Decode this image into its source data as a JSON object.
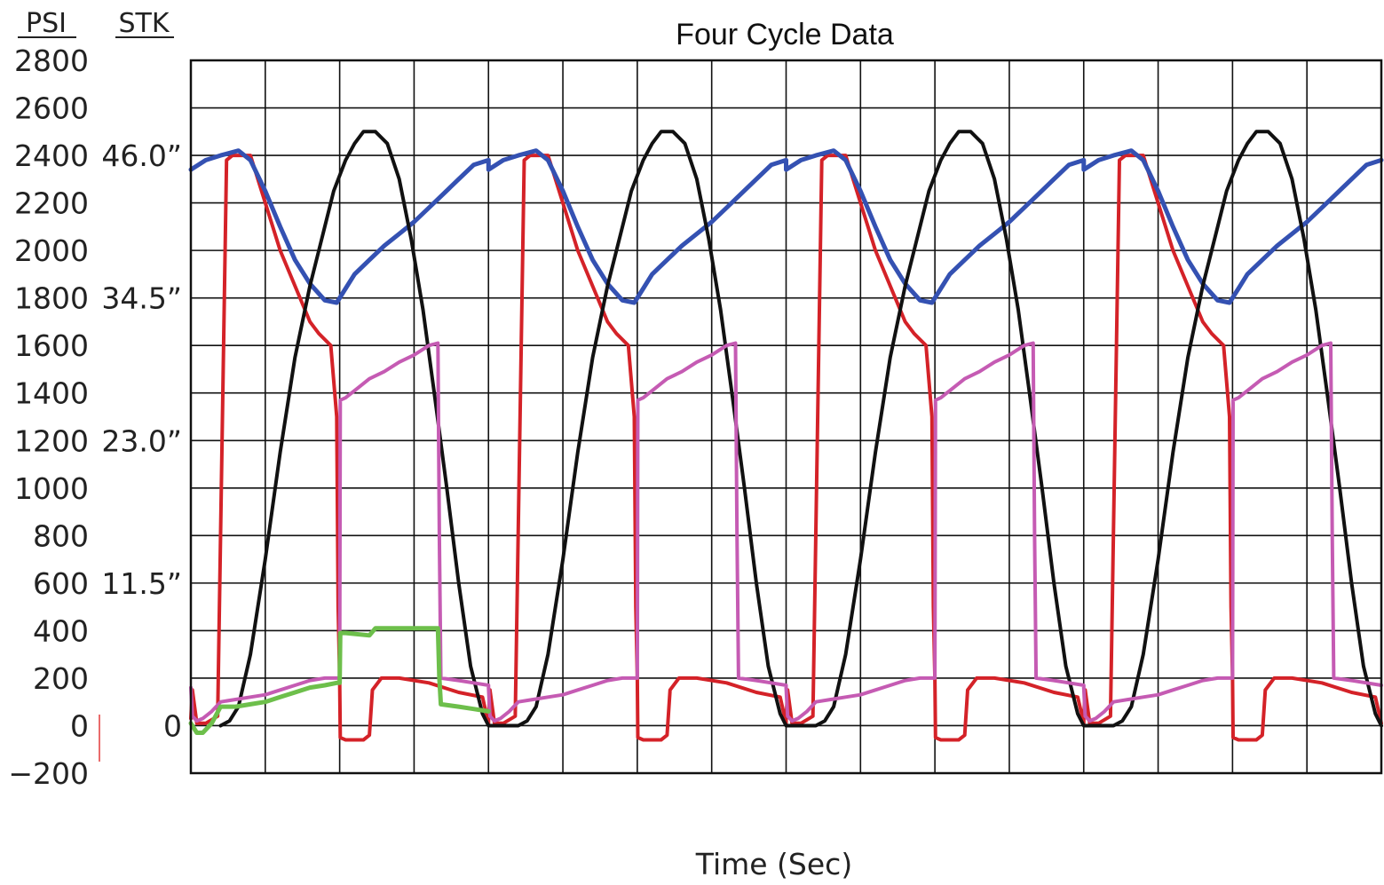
{
  "chart_data": {
    "type": "line",
    "title": "Four Cycle Data",
    "xlabel": "Time (Sec)",
    "ylabel_left": "PSI",
    "ylabel_stroke": "STK",
    "ylim": [
      -200,
      2800
    ],
    "y_ticks": [
      "2800",
      "2600",
      "2400",
      "2200",
      "2000",
      "1800",
      "1600",
      "1400",
      "1200",
      "1000",
      "800",
      "600",
      "400",
      "200",
      "0",
      "-200"
    ],
    "y_tick_values": [
      2800,
      2600,
      2400,
      2200,
      2000,
      1800,
      1600,
      1400,
      1200,
      1000,
      800,
      600,
      400,
      200,
      0,
      -200
    ],
    "stroke_ticks": [
      {
        "label": "46.0”",
        "psi": 2400
      },
      {
        "label": "34.5”",
        "psi": 1800
      },
      {
        "label": "23.0”",
        "psi": 1200
      },
      {
        "label": "11.5”",
        "psi": 600
      },
      {
        "label": "0",
        "psi": 0
      }
    ],
    "grid": true,
    "x_divisions": 16,
    "xlim": [
      0,
      4
    ],
    "cycles": 4,
    "series": [
      {
        "color": "#d42228",
        "width": 4,
        "x": [
          0,
          0.005,
          0.02,
          0.05,
          0.09,
          0.12,
          0.14,
          0.2,
          0.3,
          0.4,
          0.43,
          0.47,
          0.49,
          0.495,
          0.5,
          0.502,
          0.52,
          0.58,
          0.6,
          0.61,
          0.64,
          0.7,
          0.8,
          0.9,
          0.98,
          1.0
        ],
        "values": [
          30,
          150,
          10,
          10,
          40,
          2380,
          2400,
          2400,
          2000,
          1700,
          1650,
          1600,
          1300,
          500,
          200,
          -50,
          -60,
          -60,
          -40,
          150,
          200,
          200,
          180,
          140,
          120,
          10
        ]
      },
      {
        "color": "#3451b2",
        "width": 5,
        "x": [
          0,
          0.05,
          0.1,
          0.16,
          0.2,
          0.25,
          0.3,
          0.35,
          0.4,
          0.45,
          0.49,
          0.52,
          0.55,
          0.6,
          0.65,
          0.7,
          0.75,
          0.8,
          0.85,
          0.9,
          0.95,
          1.0
        ],
        "values": [
          2340,
          2380,
          2400,
          2420,
          2380,
          2250,
          2100,
          1960,
          1860,
          1790,
          1780,
          1840,
          1900,
          1960,
          2020,
          2070,
          2120,
          2180,
          2240,
          2300,
          2360,
          2380
        ]
      },
      {
        "color": "#111111",
        "width": 4,
        "x": [
          0.1,
          0.13,
          0.16,
          0.2,
          0.25,
          0.3,
          0.35,
          0.4,
          0.44,
          0.48,
          0.52,
          0.55,
          0.58,
          0.62,
          0.66,
          0.7,
          0.74,
          0.78,
          0.82,
          0.86,
          0.9,
          0.94,
          0.98,
          1.0
        ],
        "values": [
          0,
          20,
          80,
          300,
          700,
          1150,
          1550,
          1850,
          2050,
          2250,
          2380,
          2450,
          2500,
          2500,
          2450,
          2300,
          2050,
          1750,
          1380,
          1000,
          600,
          250,
          50,
          0
        ]
      },
      {
        "color": "#c55bb3",
        "width": 4,
        "x": [
          0,
          0.005,
          0.02,
          0.04,
          0.07,
          0.1,
          0.15,
          0.2,
          0.25,
          0.3,
          0.35,
          0.4,
          0.45,
          0.49,
          0.5,
          0.502,
          0.52,
          0.56,
          0.6,
          0.65,
          0.7,
          0.75,
          0.8,
          0.83,
          0.835,
          0.84,
          0.9,
          0.95,
          1.0
        ],
        "values": [
          160,
          40,
          20,
          30,
          60,
          100,
          110,
          120,
          130,
          150,
          170,
          190,
          200,
          200,
          200,
          1370,
          1380,
          1420,
          1460,
          1490,
          1530,
          1560,
          1600,
          1610,
          800,
          200,
          190,
          180,
          170
        ]
      },
      {
        "color": "#6dbf4b",
        "width": 5,
        "cycle1_only": true,
        "x": [
          0,
          0.02,
          0.04,
          0.07,
          0.1,
          0.15,
          0.2,
          0.25,
          0.3,
          0.35,
          0.4,
          0.45,
          0.49,
          0.5,
          0.502,
          0.52,
          0.6,
          0.62,
          0.64,
          0.7,
          0.8,
          0.83,
          0.835,
          0.84,
          0.9,
          0.95,
          1.0
        ],
        "values": [
          10,
          -30,
          -30,
          10,
          80,
          80,
          90,
          100,
          120,
          140,
          160,
          170,
          180,
          180,
          390,
          390,
          380,
          410,
          410,
          410,
          410,
          410,
          200,
          90,
          80,
          70,
          60
        ]
      }
    ]
  }
}
